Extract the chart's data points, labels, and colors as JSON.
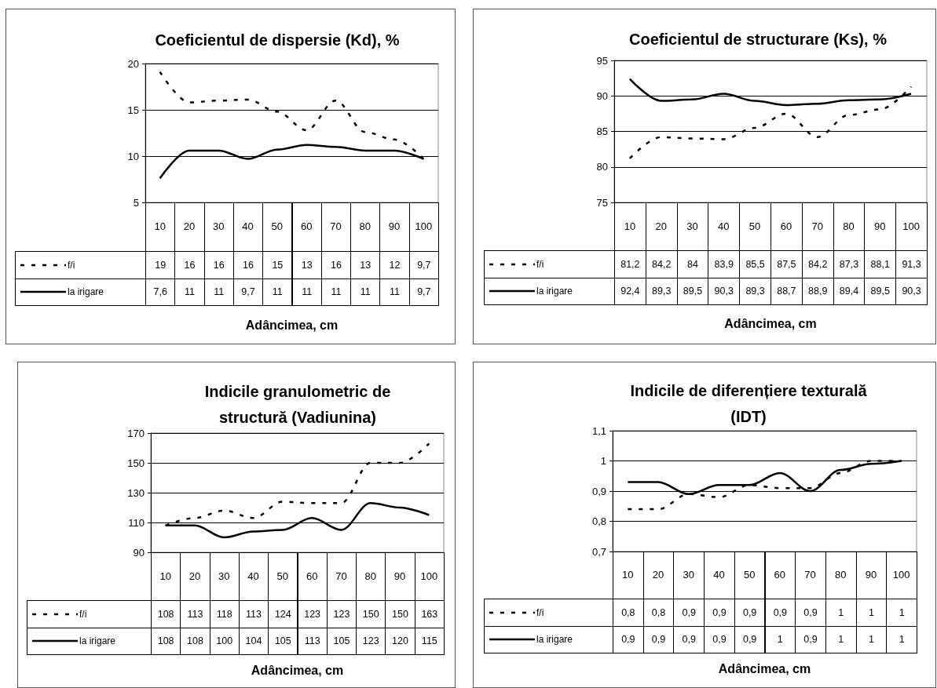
{
  "chart_data": [
    {
      "type": "line",
      "title": "Coeficientul de dispersie (Kd), %",
      "xlabel": "Adâncimea, cm",
      "categories": [
        "10",
        "20",
        "30",
        "40",
        "50",
        "60",
        "70",
        "80",
        "90",
        "100"
      ],
      "series": [
        {
          "name": "f/i",
          "color": "#000000",
          "line_style": "dashed",
          "values": [
            19.1,
            15.8,
            16.0,
            16.1,
            14.8,
            12.8,
            16.0,
            12.6,
            11.8,
            9.7
          ],
          "value_labels": [
            "19",
            "16",
            "16",
            "16",
            "15",
            "13",
            "16",
            "13",
            "12",
            "9,7"
          ]
        },
        {
          "name": "la irigare",
          "color": "#000000",
          "line_style": "solid",
          "values": [
            7.6,
            10.6,
            10.6,
            9.7,
            10.7,
            11.2,
            11.0,
            10.6,
            10.6,
            9.7
          ],
          "value_labels": [
            "7,6",
            "11",
            "11",
            "9,7",
            "11",
            "11",
            "11",
            "11",
            "11",
            "9,7"
          ]
        }
      ],
      "ylim": [
        5,
        20
      ],
      "yticks": [
        5,
        10,
        15,
        20
      ],
      "grid": "y",
      "legend": "bottom left",
      "marker": "none"
    },
    {
      "type": "line",
      "title": "Coeficientul de structurare (Ks), %",
      "xlabel": "Adâncimea, cm",
      "categories": [
        "10",
        "20",
        "30",
        "40",
        "50",
        "60",
        "70",
        "80",
        "90",
        "100"
      ],
      "series": [
        {
          "name": "f/i",
          "color": "#000000",
          "line_style": "dashed",
          "values": [
            81.2,
            84.2,
            84,
            83.9,
            85.5,
            87.5,
            84.2,
            87.3,
            88.1,
            91.3
          ],
          "value_labels": [
            "81,2",
            "84,2",
            "84",
            "83,9",
            "85,5",
            "87,5",
            "84,2",
            "87,3",
            "88,1",
            "91,3"
          ]
        },
        {
          "name": "la irigare",
          "color": "#000000",
          "line_style": "solid",
          "values": [
            92.4,
            89.3,
            89.5,
            90.3,
            89.3,
            88.7,
            88.9,
            89.4,
            89.5,
            90.3
          ],
          "value_labels": [
            "92,4",
            "89,3",
            "89,5",
            "90,3",
            "89,3",
            "88,7",
            "88,9",
            "89,4",
            "89,5",
            "90,3"
          ]
        }
      ],
      "ylim": [
        75,
        95
      ],
      "yticks": [
        75,
        80,
        85,
        90,
        95
      ],
      "grid": "y",
      "legend": "bottom left",
      "marker": "none"
    },
    {
      "type": "line",
      "title": "Indicile granulometric de structură (Vadiunina)",
      "xlabel": "Adâncimea, cm",
      "categories": [
        "10",
        "20",
        "30",
        "40",
        "50",
        "60",
        "70",
        "80",
        "90",
        "100"
      ],
      "series": [
        {
          "name": "f/i",
          "color": "#000000",
          "line_style": "dashed",
          "values": [
            108,
            113,
            118,
            113,
            124,
            123,
            123,
            150,
            150,
            163
          ],
          "value_labels": [
            "108",
            "113",
            "118",
            "113",
            "124",
            "123",
            "123",
            "150",
            "150",
            "163"
          ]
        },
        {
          "name": "la irigare",
          "color": "#000000",
          "line_style": "solid",
          "values": [
            108,
            108,
            100,
            104,
            105,
            113,
            105,
            123,
            120,
            115
          ],
          "value_labels": [
            "108",
            "108",
            "100",
            "104",
            "105",
            "113",
            "105",
            "123",
            "120",
            "115"
          ]
        }
      ],
      "ylim": [
        90,
        170
      ],
      "yticks": [
        90,
        110,
        130,
        150,
        170
      ],
      "grid": "y",
      "legend": "bottom left",
      "marker": "none"
    },
    {
      "type": "line",
      "title": "Indicile de diferențiere texturală (IDT)",
      "xlabel": "Adâncimea, cm",
      "categories": [
        "10",
        "20",
        "30",
        "40",
        "50",
        "60",
        "70",
        "80",
        "90",
        "100"
      ],
      "series": [
        {
          "name": "f/i",
          "color": "#000000",
          "line_style": "dashed",
          "values": [
            0.84,
            0.84,
            0.89,
            0.88,
            0.92,
            0.91,
            0.91,
            0.96,
            1.0,
            1.0
          ],
          "value_labels": [
            "0,8",
            "0,8",
            "0,9",
            "0,9",
            "0,9",
            "0,9",
            "0,9",
            "1",
            "1",
            "1"
          ]
        },
        {
          "name": "la irigare",
          "color": "#000000",
          "line_style": "solid",
          "values": [
            0.93,
            0.93,
            0.89,
            0.92,
            0.92,
            0.96,
            0.9,
            0.97,
            0.99,
            1.0
          ],
          "value_labels": [
            "0,9",
            "0,9",
            "0,9",
            "0,9",
            "0,9",
            "1",
            "0,9",
            "1",
            "1",
            "1"
          ]
        }
      ],
      "ylim": [
        0.7,
        1.1
      ],
      "yticks": [
        {
          "value": 0.7,
          "label": "0,7"
        },
        {
          "value": 0.8,
          "label": "0,8"
        },
        {
          "value": 0.9,
          "label": "0,9"
        },
        {
          "value": 1,
          "label": "1"
        },
        {
          "value": 1.1,
          "label": "1,1"
        }
      ],
      "grid": "y",
      "legend": "bottom left",
      "marker": "none"
    }
  ]
}
